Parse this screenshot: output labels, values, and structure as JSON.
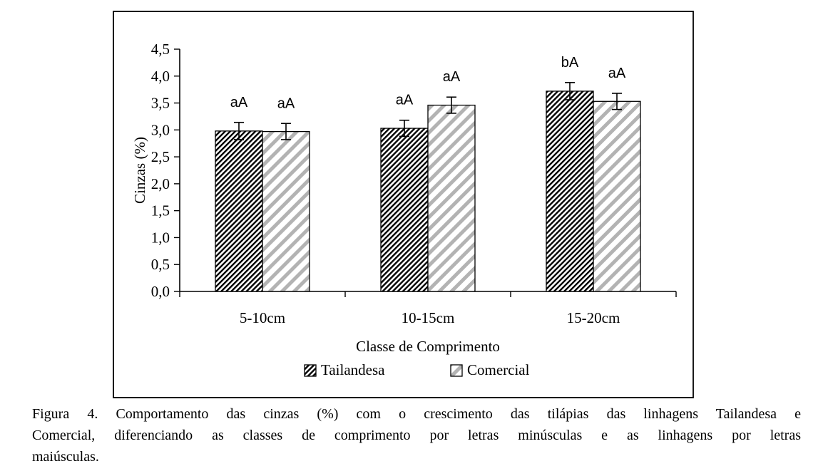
{
  "chart_data": {
    "type": "bar",
    "title": "",
    "xlabel": "Classe de Comprimento",
    "ylabel": "Cinzas (%)",
    "categories": [
      "5-10cm",
      "10-15cm",
      "15-20cm"
    ],
    "series": [
      {
        "name": "Tailandesa",
        "values": [
          2.98,
          3.03,
          3.72
        ],
        "errors": [
          0.16,
          0.15,
          0.16
        ],
        "sig_labels": [
          "aA",
          "aA",
          "bA"
        ],
        "hatch": "dense-black-diagonal"
      },
      {
        "name": "Comercial",
        "values": [
          2.97,
          3.46,
          3.53
        ],
        "errors": [
          0.15,
          0.15,
          0.15
        ],
        "sig_labels": [
          "aA",
          "aA",
          "aA"
        ],
        "hatch": "wide-gray-diagonal"
      }
    ],
    "ylim": [
      0,
      4.5
    ],
    "ytick_step": 0.5,
    "ytick_labels": [
      "0,0",
      "0,5",
      "1,0",
      "1,5",
      "2,0",
      "2,5",
      "3,0",
      "3,5",
      "4,0",
      "4,5"
    ],
    "decimal_separator": ",",
    "legend_position": "bottom-center",
    "grid": false,
    "error_bars": true,
    "colors": {
      "background": "#ffffff",
      "axis": "#000000",
      "tailandesa_stripe": "#000000",
      "comercial_stripe": "#b3b3b3",
      "bar_stroke": "#000000",
      "text": "#000000"
    }
  },
  "caption": {
    "lines": [
      "Figura 4. Comportamento das cinzas (%) com o crescimento das tilápias das linhagens Tailandesa e",
      "Comercial, diferenciando as classes de comprimento por letras minúsculas e as linhagens por letras",
      "maiúsculas."
    ]
  }
}
